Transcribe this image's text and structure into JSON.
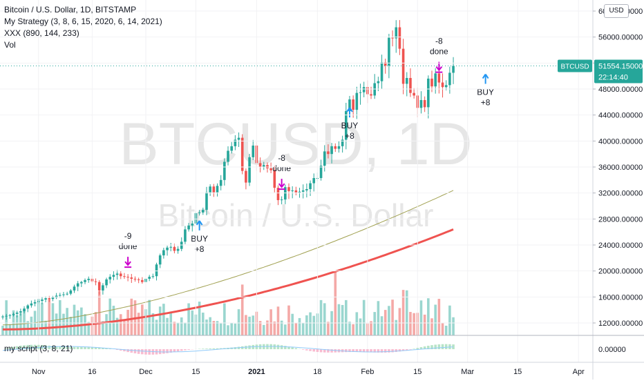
{
  "legend": {
    "title": "Bitcoin / U.S. Dollar, 1D, BITSTAMP",
    "strategy": "My Strategy (3, 8, 6, 15, 2020, 6, 14, 2021)",
    "xxx": "XXX (890, 144, 233)",
    "vol": "Vol"
  },
  "currency_button": "USD",
  "watermark": {
    "line1": "BTCUSD, 1D",
    "line2": "Bitcoin / U.S. Dollar"
  },
  "price_tag": {
    "symbol": "BTCUSD",
    "price": "51554.15000",
    "countdown": "22:14:40"
  },
  "subpane": {
    "label": "my script (3, 8, 21)",
    "zero": "0.00000"
  },
  "colors": {
    "up": "#26a69a",
    "down": "#ef5350",
    "slow_ma": "#ef5350",
    "fast_ma": "#a0a050",
    "buy": "#2196f3",
    "sell": "#cc00cc",
    "price_tag": "#26a69a"
  },
  "chart_data": {
    "type": "candlestick",
    "ylim": [
      10000,
      62000
    ],
    "y_ticks": [
      "60000.00000",
      "56000.00000",
      "52000.00000",
      "48000.00000",
      "44000.00000",
      "40000.00000",
      "36000.00000",
      "32000.00000",
      "28000.00000",
      "24000.00000",
      "20000.00000",
      "16000.00000",
      "12000.00000"
    ],
    "x_ticks": [
      {
        "label": "Nov",
        "date": "2020-11-01"
      },
      {
        "label": "16",
        "date": "2020-11-16"
      },
      {
        "label": "Dec",
        "date": "2020-12-01"
      },
      {
        "label": "15",
        "date": "2020-12-15"
      },
      {
        "label": "2021",
        "date": "2021-01-01"
      },
      {
        "label": "18",
        "date": "2021-01-18"
      },
      {
        "label": "Feb",
        "date": "2021-02-01"
      },
      {
        "label": "15",
        "date": "2021-02-15"
      },
      {
        "label": "Mar",
        "date": "2021-03-01"
      },
      {
        "label": "15",
        "date": "2021-03-15"
      },
      {
        "label": "Apr",
        "date": "2021-04-01"
      }
    ],
    "closes": [
      13000,
      13100,
      13200,
      13400,
      13600,
      13800,
      14200,
      14700,
      15000,
      15200,
      15400,
      15600,
      15800,
      15700,
      15900,
      16200,
      16300,
      16400,
      16500,
      17000,
      17600,
      18100,
      18300,
      18600,
      18800,
      18400,
      18300,
      17000,
      17800,
      18700,
      19100,
      19400,
      19600,
      19200,
      19100,
      19000,
      18800,
      18700,
      18600,
      18300,
      18800,
      19100,
      19200,
      21000,
      22400,
      23200,
      23600,
      23700,
      23100,
      23400,
      24500,
      26400,
      27000,
      27300,
      28900,
      29000,
      29400,
      32100,
      33000,
      32100,
      33100,
      34000,
      36800,
      38500,
      39200,
      40200,
      40500,
      35400,
      33600,
      37500,
      39300,
      36600,
      36000,
      36300,
      35800,
      35500,
      32800,
      30900,
      31000,
      32900,
      32300,
      32400,
      32100,
      32200,
      32400,
      32600,
      33500,
      34300,
      34300,
      36200,
      38400,
      38000,
      39200,
      38800,
      39200,
      40200,
      44600,
      46400,
      44800,
      47400,
      47500,
      48300,
      47200,
      47000,
      48900,
      49200,
      52100,
      51600,
      55900,
      55800,
      57500,
      54200,
      48800,
      49700,
      47400,
      47000,
      45100,
      46300,
      45200,
      49600,
      48400,
      50400,
      49000,
      48300,
      48600,
      50500,
      51554
    ],
    "last_price": 51554.15,
    "signals": [
      {
        "type": "buy",
        "lines": [
          "BUY",
          "+8"
        ],
        "date": "2020-12-16"
      },
      {
        "type": "sell",
        "lines": [
          "-9",
          "done"
        ],
        "date": "2020-11-26"
      },
      {
        "type": "sell",
        "lines": [
          "-8",
          "done"
        ],
        "date": "2021-01-08"
      },
      {
        "type": "buy",
        "lines": [
          "BUY",
          "+8"
        ],
        "date": "2021-01-27"
      },
      {
        "type": "sell",
        "lines": [
          "-8",
          "done"
        ],
        "date": "2021-02-21"
      },
      {
        "type": "buy",
        "lines": [
          "BUY",
          "+8"
        ],
        "date": "2021-03-06"
      }
    ]
  }
}
